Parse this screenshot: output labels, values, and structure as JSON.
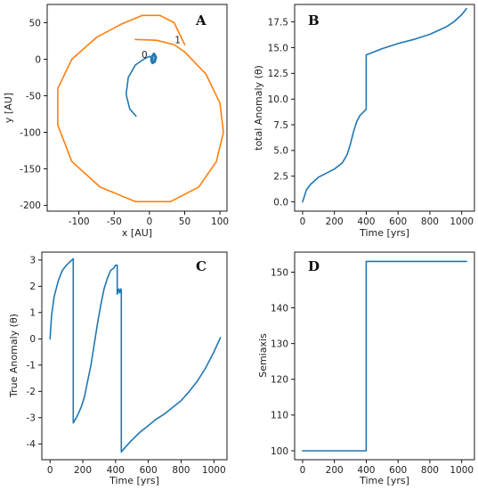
{
  "colors": {
    "series_blue": "#1f77b4",
    "series_orange": "#ff7f0e"
  },
  "chart_data": [
    {
      "panel": "A",
      "type": "line",
      "xlabel": "x [AU]",
      "ylabel": "y [AU]",
      "xlim": [
        -145,
        110
      ],
      "ylim": [
        -208,
        75
      ],
      "xticks": [
        -100,
        -50,
        0,
        50,
        100
      ],
      "yticks": [
        50,
        0,
        -50,
        -100,
        -150,
        -200
      ],
      "annotations": [
        {
          "text": "0",
          "x": -7,
          "y": 2
        },
        {
          "text": "1",
          "x": 40,
          "y": 22
        }
      ],
      "series": [
        {
          "color": "#ff7f0e",
          "x": [
            -20,
            10,
            35,
            50,
            80,
            100,
            105,
            95,
            70,
            30,
            -20,
            -70,
            -110,
            -130,
            -130,
            -110,
            -75,
            -40,
            -10,
            15,
            35,
            50
          ],
          "y": [
            27,
            26,
            20,
            10,
            -20,
            -60,
            -100,
            -140,
            -175,
            -195,
            -195,
            -175,
            -140,
            -90,
            -40,
            0,
            30,
            48,
            60,
            60,
            50,
            20
          ]
        },
        {
          "color": "#1f77b4",
          "x": [
            -19,
            -28,
            -33,
            -30,
            -20,
            -8,
            0,
            4,
            5,
            5,
            7,
            10,
            8,
            4,
            2,
            3,
            6,
            8,
            7,
            4
          ],
          "y": [
            -78,
            -68,
            -48,
            -25,
            -8,
            0,
            4,
            0,
            -5,
            3,
            8,
            3,
            -4,
            -6,
            -2,
            4,
            8,
            3,
            -4,
            -5
          ]
        }
      ]
    },
    {
      "panel": "B",
      "type": "line",
      "xlabel": "Time [yrs]",
      "ylabel": "total Anomaly (θ)",
      "xlim": [
        -50,
        1080
      ],
      "ylim": [
        -0.9,
        19.2
      ],
      "xticks": [
        0,
        200,
        400,
        600,
        800,
        1000
      ],
      "yticks": [
        0.0,
        2.5,
        5.0,
        7.5,
        10.0,
        12.5,
        15.0,
        17.5
      ],
      "tick_labels_y": [
        "0.0",
        "2.5",
        "5.0",
        "7.5",
        "10.0",
        "12.5",
        "15.0",
        "17.5"
      ],
      "series": [
        {
          "color": "#1f77b4",
          "x": [
            0,
            25,
            50,
            100,
            150,
            200,
            250,
            280,
            300,
            320,
            340,
            360,
            380,
            398,
            400,
            400,
            450,
            500,
            600,
            700,
            800,
            900,
            950,
            1000,
            1030
          ],
          "y": [
            0,
            1.2,
            1.7,
            2.4,
            2.8,
            3.2,
            3.8,
            4.6,
            5.6,
            6.8,
            7.8,
            8.4,
            8.7,
            9.0,
            9.0,
            14.3,
            14.6,
            14.9,
            15.4,
            15.8,
            16.3,
            17.0,
            17.5,
            18.2,
            18.8
          ]
        }
      ]
    },
    {
      "panel": "C",
      "type": "line",
      "xlabel": "Time [yrs]",
      "ylabel": "True Anomaly (θ)",
      "xlim": [
        -50,
        1080
      ],
      "ylim": [
        -4.6,
        3.3
      ],
      "xticks": [
        0,
        200,
        400,
        600,
        800,
        1000
      ],
      "yticks": [
        3,
        2,
        1,
        0,
        -1,
        -2,
        -3,
        -4
      ],
      "series": [
        {
          "color": "#1f77b4",
          "x": [
            0,
            10,
            25,
            50,
            75,
            100,
            125,
            142,
            142,
            165,
            190,
            210,
            230,
            250,
            270,
            290,
            310,
            330,
            350,
            370,
            390,
            400,
            410,
            410,
            420,
            425,
            430,
            432,
            435,
            435,
            470,
            500,
            550,
            600,
            650,
            700,
            750,
            800,
            850,
            900,
            950,
            1000,
            1040
          ],
          "y": [
            0,
            0.9,
            1.6,
            2.2,
            2.6,
            2.8,
            2.95,
            3.05,
            -3.2,
            -2.95,
            -2.6,
            -2.2,
            -1.6,
            -1.0,
            -0.2,
            0.6,
            1.3,
            1.9,
            2.3,
            2.6,
            2.7,
            2.8,
            2.8,
            1.7,
            1.9,
            1.75,
            1.85,
            1.9,
            1.85,
            -4.3,
            -4.05,
            -3.85,
            -3.55,
            -3.3,
            -3.05,
            -2.85,
            -2.6,
            -2.35,
            -2.0,
            -1.6,
            -1.1,
            -0.5,
            0.05
          ]
        }
      ]
    },
    {
      "panel": "D",
      "type": "line",
      "xlabel": "Time [yrs]",
      "ylabel": "Semiaxis",
      "xlim": [
        -50,
        1080
      ],
      "ylim": [
        97.5,
        155.6
      ],
      "xticks": [
        0,
        200,
        400,
        600,
        800,
        1000
      ],
      "yticks": [
        150,
        140,
        130,
        120,
        110,
        100
      ],
      "series": [
        {
          "color": "#1f77b4",
          "x": [
            0,
            400,
            400,
            1030
          ],
          "y": [
            100,
            100,
            153,
            153
          ]
        }
      ]
    }
  ]
}
